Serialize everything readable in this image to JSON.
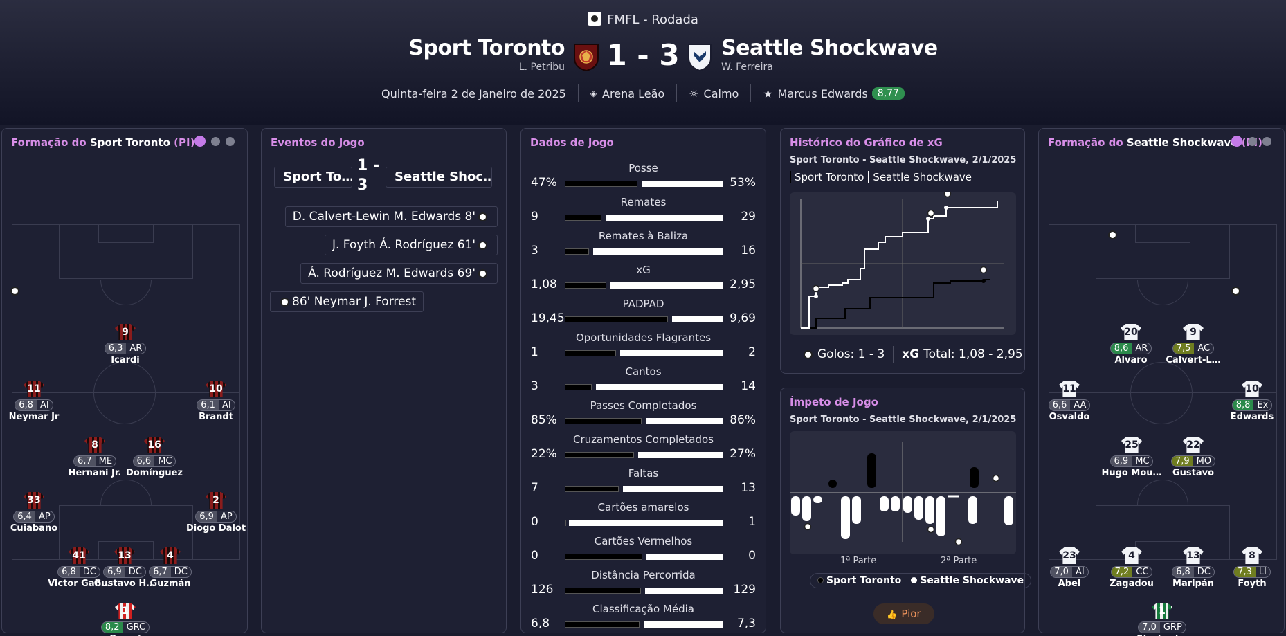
{
  "header": {
    "competition": "FMFL - Rodada",
    "home": {
      "name": "Sport Toronto",
      "manager": "L. Petribu"
    },
    "away": {
      "name": "Seattle Shockwave",
      "manager": "W. Ferreira"
    },
    "score": "1 - 3",
    "date": "Quinta-feira 2 de Janeiro de 2025",
    "stadium": "Arena Leão",
    "weather": "Calmo",
    "motm_name": "Marcus Edwards",
    "motm_rating": "8,77"
  },
  "home_formation": {
    "title_prefix": "Formação do ",
    "team": "Sport Toronto",
    "suffix": " (PI)",
    "players": [
      {
        "num": "9",
        "rating": "6,3",
        "pos": "AR",
        "name": "Icardi"
      },
      {
        "num": "11",
        "rating": "6,8",
        "pos": "AI",
        "name": "Neymar Jr"
      },
      {
        "num": "10",
        "rating": "6,1",
        "pos": "AI",
        "name": "Brandt"
      },
      {
        "num": "8",
        "rating": "6,7",
        "pos": "ME",
        "name": "Hernani Jr."
      },
      {
        "num": "16",
        "rating": "6,6",
        "pos": "MC",
        "name": "Domínguez"
      },
      {
        "num": "33",
        "rating": "6,4",
        "pos": "AP",
        "name": "Cuiabano"
      },
      {
        "num": "2",
        "rating": "6,9",
        "pos": "AP",
        "name": "Diogo Dalot"
      },
      {
        "num": "41",
        "rating": "6,8",
        "pos": "DC",
        "name": "Victor Gab…"
      },
      {
        "num": "13",
        "rating": "6,9",
        "pos": "DC",
        "name": "Gustavo H…"
      },
      {
        "num": "4",
        "rating": "6,7",
        "pos": "DC",
        "name": "Guzmán"
      },
      {
        "num": "1",
        "rating": "8,2",
        "pos": "GRC",
        "name": "Burrai"
      }
    ]
  },
  "away_formation": {
    "title_prefix": "Formação do ",
    "team": "Seattle Shockwave",
    "suffix": " (PI)",
    "players": [
      {
        "num": "20",
        "rating": "8,6",
        "pos": "AR",
        "name": "Álvaro"
      },
      {
        "num": "9",
        "rating": "7,5",
        "pos": "AC",
        "name": "Calvert-L…"
      },
      {
        "num": "11",
        "rating": "6,6",
        "pos": "AA",
        "name": "Osvaldo"
      },
      {
        "num": "10",
        "rating": "8,8",
        "pos": "Ex",
        "name": "Edwards"
      },
      {
        "num": "25",
        "rating": "6,9",
        "pos": "MC",
        "name": "Hugo Mou…"
      },
      {
        "num": "22",
        "rating": "7,9",
        "pos": "MO",
        "name": "Gustavo"
      },
      {
        "num": "23",
        "rating": "7,0",
        "pos": "AI",
        "name": "Abel"
      },
      {
        "num": "4",
        "rating": "7,2",
        "pos": "CC",
        "name": "Zagadou"
      },
      {
        "num": "13",
        "rating": "6,8",
        "pos": "DC",
        "name": "Maripán"
      },
      {
        "num": "8",
        "rating": "7,3",
        "pos": "LI",
        "name": "Foyth"
      },
      {
        "num": "1",
        "rating": "7,0",
        "pos": "GRP",
        "name": "Strakosha"
      }
    ]
  },
  "events": {
    "title": "Eventos do Jogo",
    "home_short": "Sport To…",
    "away_short": "Seattle Shoc…",
    "score_a": "1 -",
    "score_b": "3",
    "items": [
      {
        "text": "D. Calvert-Lewin M. Edwards 8'"
      },
      {
        "text": "J. Foyth Á. Rodríguez 61'"
      },
      {
        "text": "Á. Rodríguez M. Edwards 69'"
      },
      {
        "text": "86' Neymar J. Forrest"
      }
    ]
  },
  "stats": {
    "title": "Dados de Jogo",
    "rows": [
      {
        "label": "Posse",
        "home": "47%",
        "away": "53%",
        "hv": 47,
        "av": 53
      },
      {
        "label": "Remates",
        "home": "9",
        "away": "29",
        "hv": 9,
        "av": 29
      },
      {
        "label": "Remates à Baliza",
        "home": "3",
        "away": "16",
        "hv": 3,
        "av": 16
      },
      {
        "label": "xG",
        "home": "1,08",
        "away": "2,95",
        "hv": 1.08,
        "av": 2.95
      },
      {
        "label": "PADPAD",
        "home": "19,45",
        "away": "9,69",
        "hv": 19.45,
        "av": 9.69
      },
      {
        "label": "Oportunidades Flagrantes",
        "home": "1",
        "away": "2",
        "hv": 1,
        "av": 2
      },
      {
        "label": "Cantos",
        "home": "3",
        "away": "14",
        "hv": 3,
        "av": 14
      },
      {
        "label": "Passes Completados",
        "home": "85%",
        "away": "86%",
        "hv": 85,
        "av": 86
      },
      {
        "label": "Cruzamentos Completados",
        "home": "22%",
        "away": "27%",
        "hv": 22,
        "av": 27
      },
      {
        "label": "Faltas",
        "home": "7",
        "away": "13",
        "hv": 7,
        "av": 13
      },
      {
        "label": "Cartões amarelos",
        "home": "0",
        "away": "1",
        "hv": 0,
        "av": 1
      },
      {
        "label": "Cartões Vermelhos",
        "home": "0",
        "away": "0",
        "hv": 0,
        "av": 0
      },
      {
        "label": "Distância Percorrida",
        "home": "126",
        "away": "129",
        "hv": 126,
        "av": 129
      },
      {
        "label": "Classificação Média",
        "home": "6,8",
        "away": "7,3",
        "hv": 6.8,
        "av": 7.3
      }
    ]
  },
  "xg_chart": {
    "title": "Histórico do Gráfico de xG",
    "subtitle": "Sport Toronto - Seattle Shockwave, 2/1/2025",
    "legend_home": "Sport Toronto",
    "legend_away": "Seattle Shockwave",
    "goals_label": "Golos: 1 - 3",
    "xg_label": "xG",
    "xg_total": "Total: 1,08 - 2,95"
  },
  "momentum": {
    "title": "Ímpeto de Jogo",
    "subtitle": "Sport Toronto - Seattle Shockwave, 2/1/2025",
    "first_half": "1ª Parte",
    "second_half": "2ª Parte",
    "legend_home": "Sport Toronto",
    "legend_away": "Seattle Shockwave",
    "rating_label": "Pior"
  },
  "colors": {
    "accent": "#d88ee8",
    "positive": "#2b8a4b",
    "olive": "#6f7d20"
  }
}
